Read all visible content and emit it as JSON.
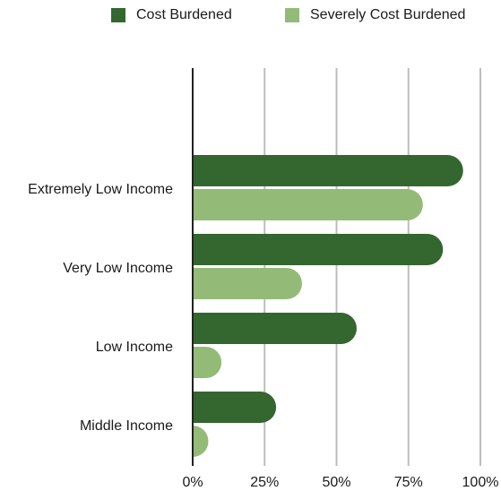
{
  "chart_data": {
    "type": "bar",
    "orientation": "horizontal",
    "categories": [
      "Extremely Low Income",
      "Very Low Income",
      "Low Income",
      "Middle Income"
    ],
    "series": [
      {
        "name": "Cost Burdened",
        "color": "#346630",
        "values": [
          94,
          87,
          57,
          29
        ]
      },
      {
        "name": "Severely Cost Burdened",
        "color": "#93bb77",
        "values": [
          80,
          38,
          10,
          1
        ]
      }
    ],
    "xlim": [
      0,
      100
    ],
    "x_ticks": [
      0,
      25,
      50,
      75,
      100
    ],
    "x_tick_labels": [
      "0%",
      "25%",
      "50%",
      "75%",
      "100%"
    ],
    "grid": true,
    "legend": "top"
  }
}
